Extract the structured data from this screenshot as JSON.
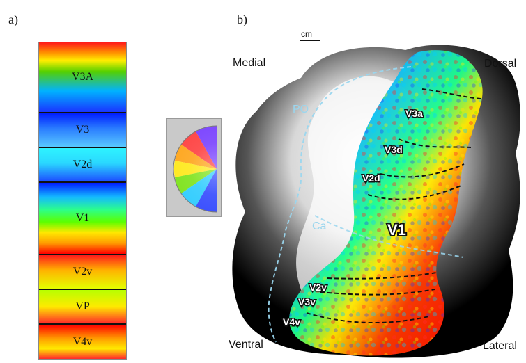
{
  "panels": {
    "left_label": "a)",
    "right_label": "b)"
  },
  "legend": {
    "bands": [
      {
        "label": "V3A"
      },
      {
        "label": "V3"
      },
      {
        "label": "V2d"
      },
      {
        "label": "V1"
      },
      {
        "label": "V2v"
      },
      {
        "label": "VP"
      },
      {
        "label": "V4v"
      }
    ]
  },
  "map": {
    "scale_label": "cm",
    "orientation": {
      "medial": "Medial",
      "dorsal": "Dorsal",
      "ventral": "Ventral",
      "lateral": "Lateral"
    },
    "sulci": {
      "po": "PO",
      "ca": "Ca"
    },
    "areas": {
      "v3a": "V3a",
      "v3d": "V3d",
      "v2d": "V2d",
      "v1": "V1",
      "v2v": "V2v",
      "v3v": "V3v",
      "v4v": "V4v"
    }
  }
}
